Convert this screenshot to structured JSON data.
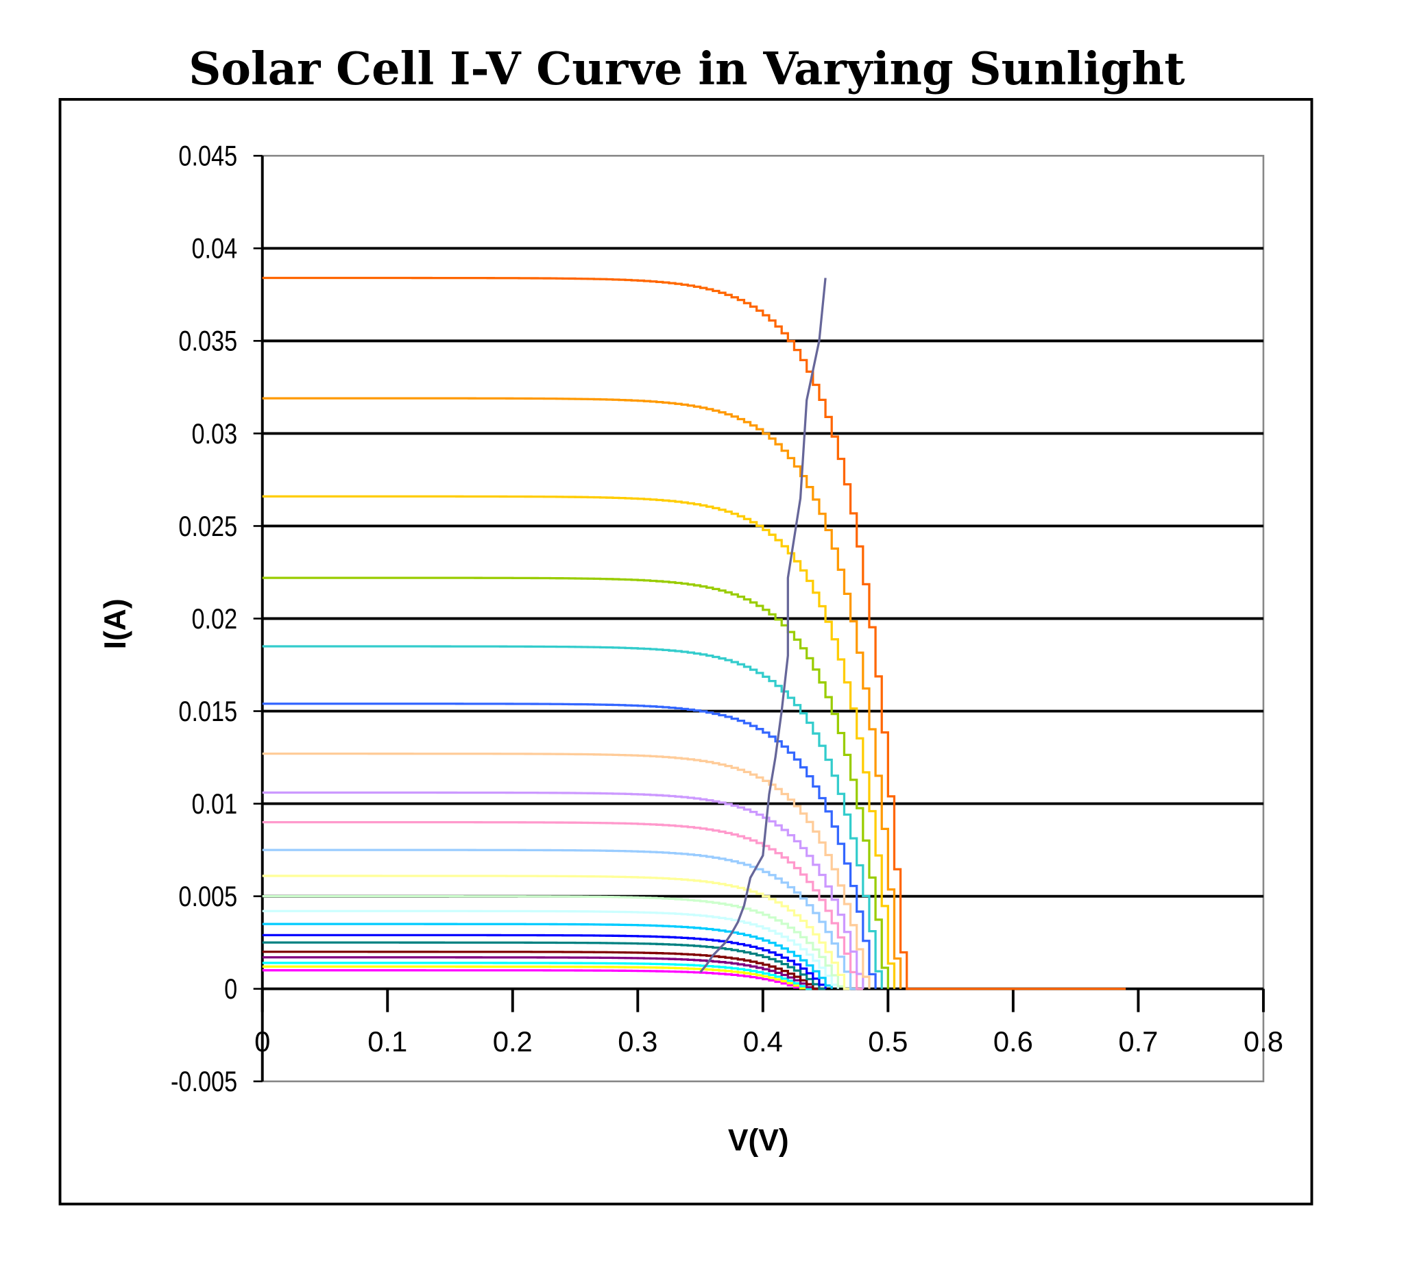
{
  "chart_data": {
    "type": "line",
    "title": "Solar Cell I-V Curve in Varying Sunlight",
    "xlabel": "V(V)",
    "ylabel": "I(A)",
    "xlim": [
      0,
      0.8
    ],
    "ylim": [
      -0.005,
      0.045
    ],
    "x_ticks": [
      "0",
      "0.1",
      "0.2",
      "0.3",
      "0.4",
      "0.5",
      "0.6",
      "0.7",
      "0.8"
    ],
    "y_ticks": [
      "-0.005",
      "0",
      "0.005",
      "0.01",
      "0.015",
      "0.02",
      "0.025",
      "0.03",
      "0.035",
      "0.04",
      "0.045"
    ],
    "grid": "horizontal major gridlines",
    "legend": "none",
    "series": [
      {
        "isc": 0.0384,
        "voc": 0.512,
        "color": "#ff6600",
        "x_end": 0.69
      },
      {
        "isc": 0.0319,
        "voc": 0.507,
        "color": "#ff9900"
      },
      {
        "isc": 0.0266,
        "voc": 0.502,
        "color": "#ffcc00"
      },
      {
        "isc": 0.0222,
        "voc": 0.497,
        "color": "#99cc00"
      },
      {
        "isc": 0.0185,
        "voc": 0.492,
        "color": "#33cccc"
      },
      {
        "isc": 0.0154,
        "voc": 0.487,
        "color": "#3366ff"
      },
      {
        "isc": 0.0127,
        "voc": 0.482,
        "color": "#ffcc99"
      },
      {
        "isc": 0.0106,
        "voc": 0.478,
        "color": "#cc99ff"
      },
      {
        "isc": 0.009,
        "voc": 0.474,
        "color": "#ff99cc"
      },
      {
        "isc": 0.0075,
        "voc": 0.47,
        "color": "#99ccff"
      },
      {
        "isc": 0.0061,
        "voc": 0.465,
        "color": "#ffff99"
      },
      {
        "isc": 0.005,
        "voc": 0.461,
        "color": "#ccffcc"
      },
      {
        "isc": 0.0042,
        "voc": 0.457,
        "color": "#ccffff"
      },
      {
        "isc": 0.0035,
        "voc": 0.452,
        "color": "#00ccff"
      },
      {
        "isc": 0.0029,
        "voc": 0.448,
        "color": "#0000ff"
      },
      {
        "isc": 0.0025,
        "voc": 0.444,
        "color": "#008080"
      },
      {
        "isc": 0.002,
        "voc": 0.44,
        "color": "#800000"
      },
      {
        "isc": 0.0017,
        "voc": 0.437,
        "color": "#800080"
      },
      {
        "isc": 0.0014,
        "voc": 0.434,
        "color": "#00ffff"
      },
      {
        "isc": 0.0012,
        "voc": 0.431,
        "color": "#ffff00"
      },
      {
        "isc": 0.001,
        "voc": 0.428,
        "color": "#ff00ff"
      }
    ],
    "max_power_line": {
      "color": "#666699",
      "x": [
        0.35,
        0.355,
        0.36,
        0.37,
        0.375,
        0.38,
        0.385,
        0.39,
        0.4,
        0.405,
        0.41,
        0.415,
        0.42,
        0.42,
        0.43,
        0.435,
        0.445,
        0.45
      ],
      "y": [
        0.0009,
        0.0013,
        0.0018,
        0.0025,
        0.003,
        0.0036,
        0.0045,
        0.006,
        0.0072,
        0.0105,
        0.0125,
        0.015,
        0.018,
        0.0222,
        0.0265,
        0.0318,
        0.035,
        0.0384
      ]
    }
  }
}
